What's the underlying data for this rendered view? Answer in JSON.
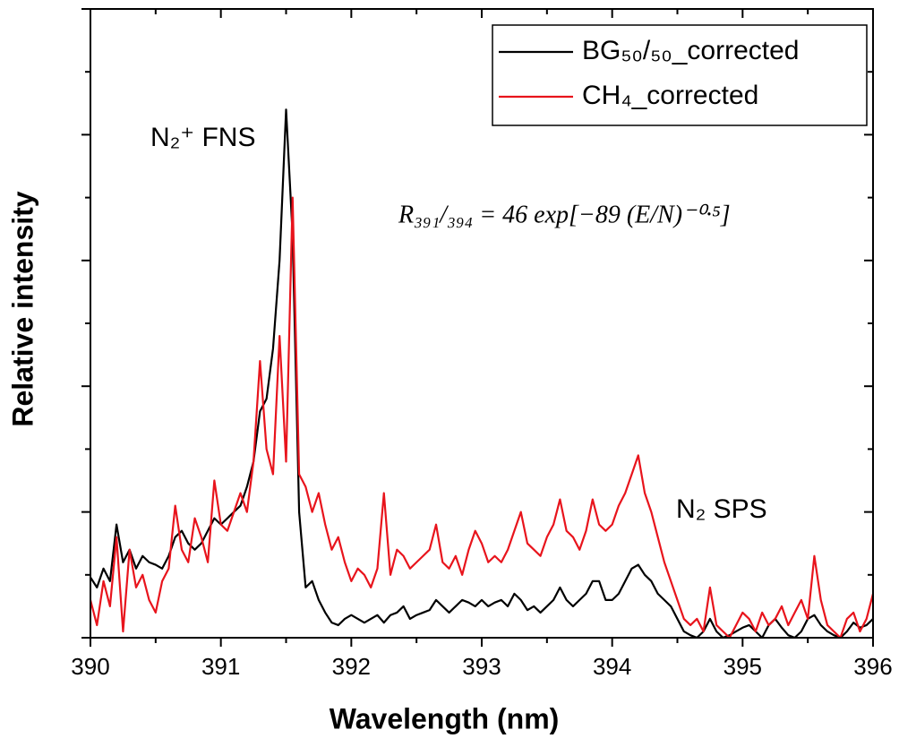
{
  "chart_data": {
    "type": "line",
    "xlabel": "Wavelength (nm)",
    "ylabel": "Relative intensity",
    "annotations": [
      "N₂⁺ FNS",
      "N₂ SPS",
      "R₃₉₁/₃₉₄ = 46 exp[−89 (E/N)⁻⁰·⁵]"
    ],
    "legend": "upper right",
    "xlim": [
      390,
      396
    ],
    "xticks": [
      390,
      391,
      392,
      393,
      394,
      395,
      396
    ],
    "xminorticks": [
      390.5,
      391.5,
      392.5,
      393.5,
      394.5,
      395.5
    ],
    "ylim": [
      0,
      5
    ],
    "yticks": [
      0,
      1,
      2,
      3,
      4,
      5
    ],
    "yminorticks": [
      0.5,
      1.5,
      2.5,
      3.5,
      4.5
    ],
    "ytick_labels": false,
    "x": [
      390,
      390.05,
      390.1,
      390.15,
      390.2,
      390.25,
      390.3,
      390.35,
      390.4,
      390.45,
      390.5,
      390.55,
      390.6,
      390.65,
      390.7,
      390.75,
      390.8,
      390.85,
      390.9,
      390.95,
      391,
      391.05,
      391.1,
      391.15,
      391.2,
      391.25,
      391.3,
      391.35,
      391.4,
      391.45,
      391.5,
      391.55,
      391.6,
      391.65,
      391.7,
      391.75,
      391.8,
      391.85,
      391.9,
      391.95,
      392,
      392.05,
      392.1,
      392.15,
      392.2,
      392.25,
      392.3,
      392.35,
      392.4,
      392.45,
      392.5,
      392.55,
      392.6,
      392.65,
      392.7,
      392.75,
      392.8,
      392.85,
      392.9,
      392.95,
      393,
      393.05,
      393.1,
      393.15,
      393.2,
      393.25,
      393.3,
      393.35,
      393.4,
      393.45,
      393.5,
      393.55,
      393.6,
      393.65,
      393.7,
      393.75,
      393.8,
      393.85,
      393.9,
      393.95,
      394,
      394.05,
      394.1,
      394.15,
      394.2,
      394.25,
      394.3,
      394.35,
      394.4,
      394.45,
      394.5,
      394.55,
      394.6,
      394.65,
      394.7,
      394.75,
      394.8,
      394.85,
      394.9,
      394.95,
      395,
      395.05,
      395.1,
      395.15,
      395.2,
      395.25,
      395.3,
      395.35,
      395.4,
      395.45,
      395.5,
      395.55,
      395.6,
      395.65,
      395.7,
      395.75,
      395.8,
      395.85,
      395.9,
      395.95,
      396
    ],
    "series": [
      {
        "name": "BG₅₀/₅₀_corrected",
        "color": "#000000",
        "values": [
          0.48,
          0.4,
          0.55,
          0.45,
          0.9,
          0.6,
          0.7,
          0.55,
          0.65,
          0.6,
          0.58,
          0.55,
          0.65,
          0.8,
          0.85,
          0.75,
          0.7,
          0.75,
          0.85,
          0.95,
          0.9,
          0.95,
          1.0,
          1.05,
          1.2,
          1.4,
          1.8,
          1.9,
          2.3,
          3.0,
          4.2,
          3.2,
          1.0,
          0.4,
          0.45,
          0.3,
          0.2,
          0.12,
          0.1,
          0.15,
          0.18,
          0.15,
          0.12,
          0.15,
          0.18,
          0.12,
          0.18,
          0.2,
          0.25,
          0.15,
          0.18,
          0.2,
          0.22,
          0.3,
          0.25,
          0.2,
          0.25,
          0.3,
          0.28,
          0.25,
          0.3,
          0.25,
          0.28,
          0.3,
          0.25,
          0.35,
          0.3,
          0.22,
          0.25,
          0.2,
          0.25,
          0.3,
          0.4,
          0.3,
          0.25,
          0.3,
          0.35,
          0.45,
          0.45,
          0.3,
          0.3,
          0.35,
          0.45,
          0.55,
          0.58,
          0.5,
          0.45,
          0.35,
          0.3,
          0.25,
          0.15,
          0.05,
          0.02,
          0.0,
          0.05,
          0.15,
          0.05,
          0.0,
          0.02,
          0.05,
          0.08,
          0.1,
          0.05,
          0.0,
          0.1,
          0.15,
          0.08,
          0.02,
          0.0,
          0.05,
          0.15,
          0.18,
          0.1,
          0.05,
          0.02,
          0.0,
          0.05,
          0.12,
          0.08,
          0.1,
          0.15
        ]
      },
      {
        "name": "CH₄_corrected",
        "color": "#e8141c",
        "values": [
          0.3,
          0.1,
          0.45,
          0.25,
          0.8,
          0.05,
          0.7,
          0.4,
          0.5,
          0.3,
          0.2,
          0.45,
          0.55,
          1.05,
          0.7,
          0.6,
          0.95,
          0.8,
          0.6,
          1.25,
          0.9,
          0.85,
          1.0,
          1.15,
          1.0,
          1.4,
          2.2,
          1.5,
          1.3,
          2.4,
          1.4,
          3.5,
          1.3,
          1.2,
          1.0,
          1.15,
          0.9,
          0.7,
          0.8,
          0.6,
          0.45,
          0.55,
          0.5,
          0.4,
          0.55,
          1.15,
          0.5,
          0.7,
          0.65,
          0.55,
          0.6,
          0.65,
          0.7,
          0.9,
          0.6,
          0.55,
          0.65,
          0.5,
          0.7,
          0.85,
          0.75,
          0.6,
          0.65,
          0.6,
          0.7,
          0.85,
          1.0,
          0.75,
          0.7,
          0.65,
          0.8,
          0.9,
          1.1,
          0.85,
          0.8,
          0.7,
          0.85,
          1.1,
          0.9,
          0.85,
          0.9,
          1.05,
          1.15,
          1.3,
          1.45,
          1.15,
          1.0,
          0.8,
          0.6,
          0.45,
          0.3,
          0.15,
          0.1,
          0.15,
          0.05,
          0.4,
          0.1,
          0.05,
          0.0,
          0.1,
          0.2,
          0.15,
          0.05,
          0.2,
          0.1,
          0.15,
          0.25,
          0.1,
          0.2,
          0.3,
          0.15,
          0.65,
          0.3,
          0.1,
          0.05,
          0.0,
          0.15,
          0.2,
          0.05,
          0.15,
          0.35
        ]
      }
    ]
  }
}
